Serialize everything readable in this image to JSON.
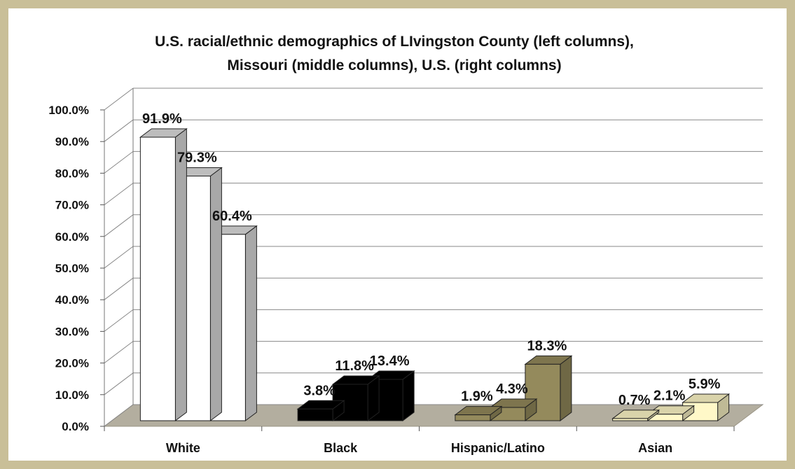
{
  "chart_data": {
    "type": "bar",
    "title": "U.S. racial/ethnic demographics of LIvingston County (left columns), Missouri (middle columns), U.S.  (right columns)",
    "title_lines": [
      "U.S. racial/ethnic demographics of LIvingston County (left columns),",
      "Missouri (middle columns), U.S.  (right columns)"
    ],
    "categories": [
      "White",
      "Black",
      "Hispanic/Latino",
      "Asian"
    ],
    "series": [
      {
        "name": "Livingston County",
        "values": [
          91.9,
          3.8,
          1.9,
          0.7
        ],
        "labels": [
          "91.9%",
          "3.8%",
          "1.9%",
          "0.7%"
        ]
      },
      {
        "name": "Missouri",
        "values": [
          79.3,
          11.8,
          4.3,
          2.1
        ],
        "labels": [
          "79.3%",
          "11.8%",
          "4.3%",
          "2.1%"
        ]
      },
      {
        "name": "U.S.",
        "values": [
          60.4,
          13.4,
          18.3,
          5.9
        ],
        "labels": [
          "60.4%",
          "13.4%",
          "18.3%",
          "5.9%"
        ]
      }
    ],
    "category_colors": [
      "#ffffff",
      "#000000",
      "#948a5c",
      "#fff8c8"
    ],
    "ylim": [
      0,
      100
    ],
    "y_ticks": [
      "0.0%",
      "10.0%",
      "20.0%",
      "30.0%",
      "40.0%",
      "50.0%",
      "60.0%",
      "70.0%",
      "80.0%",
      "90.0%",
      "100.0%"
    ],
    "xlabel": "",
    "ylabel": "",
    "grid": true,
    "legend": "none",
    "colors": {
      "floor": "#b3ae9f",
      "frame": "#c9bf98",
      "grid": "#888888"
    }
  }
}
